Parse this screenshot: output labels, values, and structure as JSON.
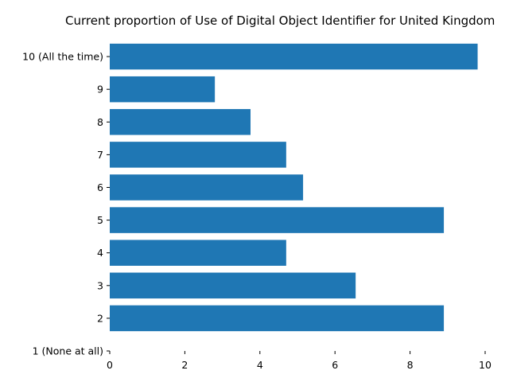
{
  "chart_data": {
    "type": "bar",
    "orientation": "horizontal",
    "title": "Current proportion of Use of Digital Object Identifier for United Kingdom",
    "xlabel": "",
    "ylabel": "",
    "categories": [
      "1 (None at all)",
      "2",
      "3",
      "4",
      "5",
      "6",
      "7",
      "8",
      "9",
      "10 (All the time)"
    ],
    "values": [
      0,
      8.9,
      6.55,
      4.7,
      8.9,
      5.15,
      4.7,
      3.75,
      2.8,
      9.8
    ],
    "xlim": [
      0,
      10
    ],
    "xticks": [
      "0",
      "2",
      "4",
      "6",
      "8",
      "10"
    ],
    "grid": false,
    "bar_color": "#1f77b4"
  }
}
